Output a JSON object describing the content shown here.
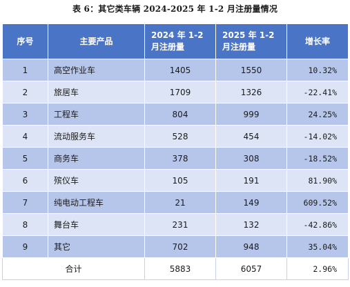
{
  "title": "表 6：其它类车辆 2024-2025 年 1-2 月注册量情况",
  "headers": {
    "seq": "序号",
    "product": "主要产品",
    "y2024": "2024 年 1-2 月注册量",
    "y2025": "2025 年 1-2 月注册量",
    "growth": "增长率"
  },
  "rows": [
    {
      "seq": "1",
      "name": "高空作业车",
      "y2024": "1405",
      "y2025": "1550",
      "growth": "10.32%"
    },
    {
      "seq": "2",
      "name": "旅居车",
      "y2024": "1709",
      "y2025": "1326",
      "growth": "-22.41%"
    },
    {
      "seq": "3",
      "name": "工程车",
      "y2024": "804",
      "y2025": "999",
      "growth": "24.25%"
    },
    {
      "seq": "4",
      "name": "流动服务车",
      "y2024": "528",
      "y2025": "454",
      "growth": "-14.02%"
    },
    {
      "seq": "5",
      "name": "商务车",
      "y2024": "378",
      "y2025": "308",
      "growth": "-18.52%"
    },
    {
      "seq": "6",
      "name": "殡仪车",
      "y2024": "105",
      "y2025": "191",
      "growth": "81.90%"
    },
    {
      "seq": "7",
      "name": "纯电动工程车",
      "y2024": "21",
      "y2025": "149",
      "growth": "609.52%"
    },
    {
      "seq": "8",
      "name": "舞台车",
      "y2024": "231",
      "y2025": "132",
      "growth": "-42.86%"
    },
    {
      "seq": "9",
      "name": "其它",
      "y2024": "702",
      "y2025": "948",
      "growth": "35.04%"
    }
  ],
  "total": {
    "label": "合计",
    "y2024": "5883",
    "y2025": "6057",
    "growth": "2.96%"
  },
  "colors": {
    "header_bg": "#4a74c6",
    "row_odd": "#b6c6ea",
    "row_even": "#dde4f5"
  }
}
